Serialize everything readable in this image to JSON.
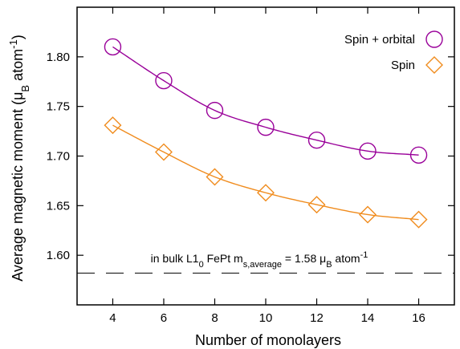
{
  "chart_data": {
    "type": "line",
    "xlabel": "Number of monolayers",
    "ylabel": {
      "main": "Average magnetic moment (μ",
      "sub": "B",
      "mid": " atom",
      "sup": "-1",
      "end": ")"
    },
    "xlim": [
      2.6,
      17.4
    ],
    "ylim": [
      1.55,
      1.85
    ],
    "xticks": [
      4,
      6,
      8,
      10,
      12,
      14,
      16
    ],
    "yticks": [
      1.6,
      1.65,
      1.7,
      1.75,
      1.8
    ],
    "ytick_labels": [
      "1.60",
      "1.65",
      "1.70",
      "1.75",
      "1.80"
    ],
    "grid": false,
    "legend_position": "top-right",
    "series": [
      {
        "name": "Spin + orbital",
        "marker": "circle",
        "color": "#990099",
        "x": [
          4,
          6,
          8,
          10,
          12,
          14,
          16
        ],
        "y": [
          1.81,
          1.776,
          1.746,
          1.729,
          1.716,
          1.705,
          1.701
        ]
      },
      {
        "name": "Spin",
        "marker": "diamond",
        "color": "#f08c1e",
        "x": [
          4,
          6,
          8,
          10,
          12,
          14,
          16
        ],
        "y": [
          1.731,
          1.704,
          1.679,
          1.663,
          1.651,
          1.641,
          1.636
        ]
      }
    ],
    "reference_line": {
      "y": 1.582,
      "style": "dashed",
      "label": {
        "pre": "in bulk L1",
        "sub1": "0",
        "mid": " FePt m",
        "sub2": "s,average",
        "post": " = 1.58 μ",
        "sub3": "B",
        "unit": " atom",
        "sup": "-1"
      }
    }
  }
}
